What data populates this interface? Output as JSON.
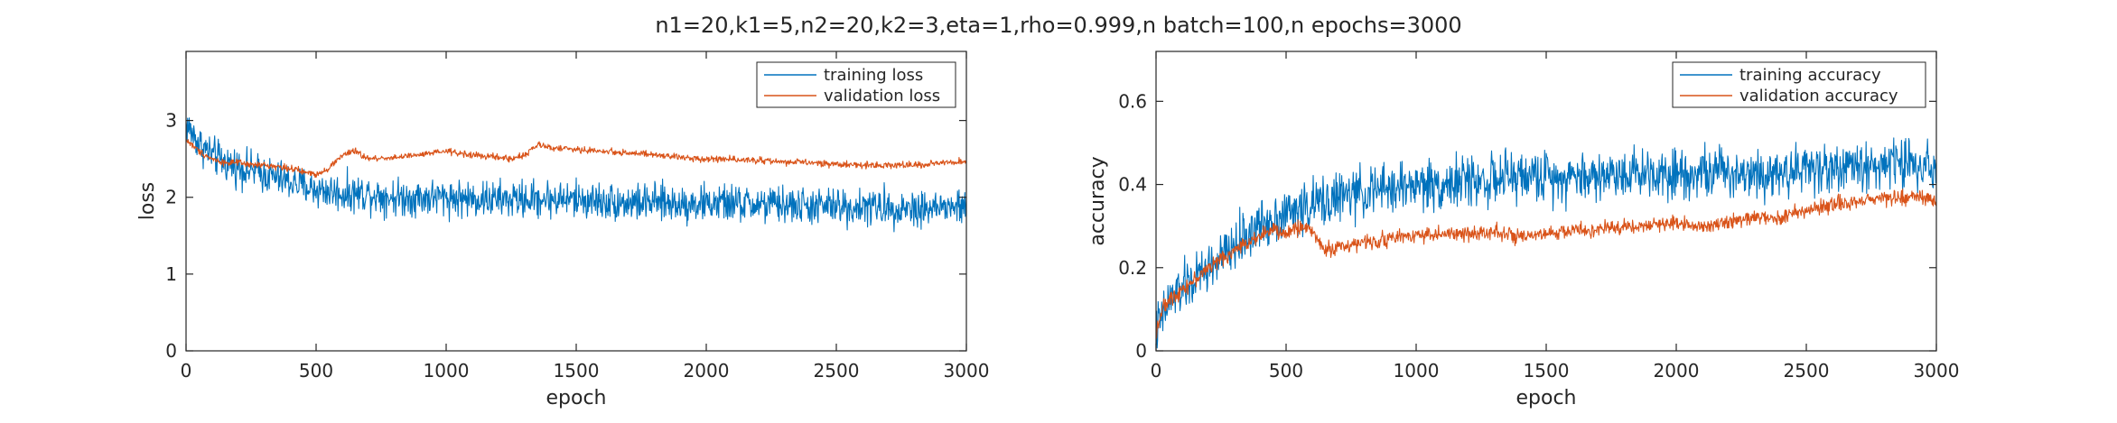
{
  "figure": {
    "title": "n1=20,k1=5,n2=20,k2=3,eta=1,rho=0.999,n batch=100,n epochs=3000"
  },
  "chart_data": [
    {
      "type": "line",
      "xlabel": "epoch",
      "ylabel": "loss",
      "xlim": [
        0,
        3000
      ],
      "ylim": [
        0,
        3.9
      ],
      "xticks": [
        "0",
        "500",
        "1000",
        "1500",
        "2000",
        "2500",
        "3000"
      ],
      "xtick_values": [
        0,
        500,
        1000,
        1500,
        2000,
        2500,
        3000
      ],
      "yticks": [
        "0",
        "1",
        "2",
        "3"
      ],
      "ytick_values": [
        0,
        1,
        2,
        3
      ],
      "grid": false,
      "legend_position": "top-right",
      "x": [
        0,
        50,
        100,
        150,
        200,
        250,
        300,
        350,
        400,
        450,
        500,
        550,
        600,
        650,
        700,
        800,
        900,
        1000,
        1100,
        1200,
        1250,
        1300,
        1350,
        1400,
        1500,
        1600,
        1700,
        1800,
        1900,
        2000,
        2100,
        2200,
        2300,
        2400,
        2500,
        2600,
        2700,
        2800,
        2900,
        3000
      ],
      "series": [
        {
          "name": "training loss",
          "color": "#0072BD",
          "noise": 0.2,
          "values": [
            2.95,
            2.7,
            2.55,
            2.45,
            2.4,
            2.35,
            2.3,
            2.25,
            2.2,
            2.15,
            2.1,
            2.08,
            2.05,
            2.05,
            2.05,
            2.0,
            2.0,
            2.0,
            1.98,
            1.97,
            1.97,
            1.97,
            1.98,
            1.98,
            1.97,
            1.95,
            1.93,
            1.93,
            1.92,
            1.92,
            1.92,
            1.9,
            1.9,
            1.88,
            1.88,
            1.87,
            1.87,
            1.86,
            1.86,
            1.87
          ]
        },
        {
          "name": "validation loss",
          "color": "#D95319",
          "noise": 0.035,
          "values": [
            2.75,
            2.6,
            2.5,
            2.45,
            2.45,
            2.42,
            2.42,
            2.4,
            2.38,
            2.33,
            2.3,
            2.38,
            2.55,
            2.6,
            2.5,
            2.52,
            2.55,
            2.6,
            2.55,
            2.52,
            2.5,
            2.55,
            2.68,
            2.65,
            2.62,
            2.6,
            2.58,
            2.55,
            2.52,
            2.5,
            2.5,
            2.48,
            2.46,
            2.45,
            2.43,
            2.42,
            2.42,
            2.42,
            2.44,
            2.47
          ]
        }
      ]
    },
    {
      "type": "line",
      "xlabel": "epoch",
      "ylabel": "accuracy",
      "xlim": [
        0,
        3000
      ],
      "ylim": [
        0,
        0.72
      ],
      "xticks": [
        "0",
        "500",
        "1000",
        "1500",
        "2000",
        "2500",
        "3000"
      ],
      "xtick_values": [
        0,
        500,
        1000,
        1500,
        2000,
        2500,
        3000
      ],
      "yticks": [
        "0",
        "0.2",
        "0.4",
        "0.6"
      ],
      "ytick_values": [
        0,
        0.2,
        0.4,
        0.6
      ],
      "grid": false,
      "legend_position": "top-right",
      "x": [
        0,
        25,
        50,
        100,
        150,
        200,
        250,
        300,
        350,
        400,
        450,
        500,
        550,
        600,
        650,
        700,
        800,
        900,
        1000,
        1100,
        1200,
        1300,
        1400,
        1500,
        1600,
        1700,
        1800,
        1900,
        2000,
        2100,
        2200,
        2300,
        2400,
        2500,
        2600,
        2700,
        2800,
        2900,
        3000
      ],
      "series": [
        {
          "name": "training accuracy",
          "color": "#0072BD",
          "noise": 0.05,
          "values": [
            0.05,
            0.08,
            0.12,
            0.15,
            0.17,
            0.2,
            0.22,
            0.25,
            0.28,
            0.3,
            0.32,
            0.33,
            0.34,
            0.35,
            0.36,
            0.37,
            0.38,
            0.39,
            0.4,
            0.4,
            0.41,
            0.41,
            0.42,
            0.42,
            0.42,
            0.42,
            0.43,
            0.43,
            0.43,
            0.43,
            0.43,
            0.43,
            0.43,
            0.44,
            0.44,
            0.44,
            0.45,
            0.45,
            0.45
          ]
        },
        {
          "name": "validation accuracy",
          "color": "#D95319",
          "noise": 0.015,
          "values": [
            0.05,
            0.1,
            0.12,
            0.15,
            0.17,
            0.2,
            0.22,
            0.24,
            0.26,
            0.28,
            0.29,
            0.28,
            0.3,
            0.29,
            0.24,
            0.25,
            0.26,
            0.27,
            0.28,
            0.28,
            0.28,
            0.29,
            0.27,
            0.28,
            0.29,
            0.29,
            0.3,
            0.3,
            0.31,
            0.3,
            0.31,
            0.32,
            0.32,
            0.34,
            0.35,
            0.36,
            0.37,
            0.37,
            0.36
          ]
        }
      ]
    }
  ]
}
